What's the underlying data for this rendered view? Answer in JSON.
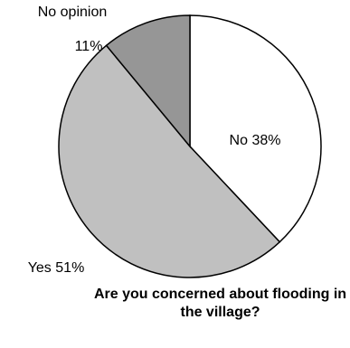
{
  "chart_data": {
    "type": "pie",
    "title": "Are you concerned about flooding in the village?",
    "categories": [
      "No",
      "Yes",
      "No opinion"
    ],
    "values": [
      38,
      51,
      11
    ],
    "value_labels": [
      "38%",
      "51%",
      "11%"
    ],
    "colors": [
      "#ffffff",
      "#c0c0c0",
      "#969696"
    ]
  }
}
